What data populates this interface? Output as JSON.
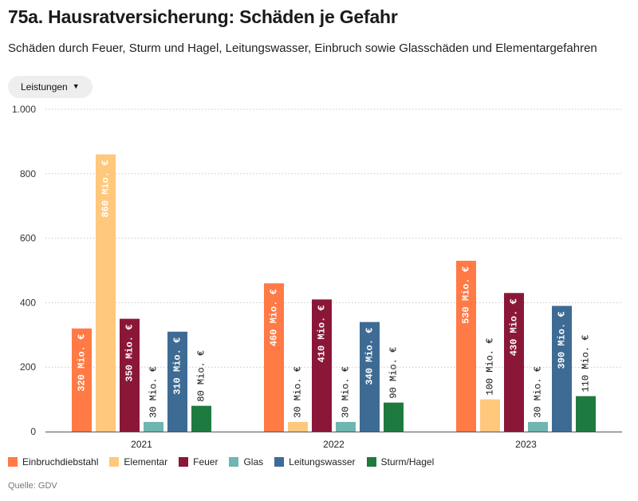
{
  "header": {
    "title": "75a. Hausratversicherung: Schäden je Gefahr",
    "subtitle": "Schäden durch Feuer, Sturm und Hagel, Leitungswasser, Einbruch sowie Glasschäden und Elementargefahren"
  },
  "dropdown": {
    "label": "Leistungen",
    "icon": "chevron-down-icon"
  },
  "source": "Quelle: GDV",
  "chart_data": {
    "type": "bar",
    "categories": [
      "2021",
      "2022",
      "2023"
    ],
    "series": [
      {
        "name": "Einbruchdiebstahl",
        "color": "#ff7a45",
        "values": [
          320,
          460,
          530
        ],
        "labels": [
          "320 Mio. €",
          "460 Mio. €",
          "530 Mio. €"
        ]
      },
      {
        "name": "Elementar",
        "color": "#ffc87c",
        "values": [
          860,
          30,
          100
        ],
        "labels": [
          "860 Mio. €",
          "30 Mio. €",
          "100 Mio. €"
        ]
      },
      {
        "name": "Feuer",
        "color": "#8b1738",
        "values": [
          350,
          410,
          430
        ],
        "labels": [
          "350 Mio. €",
          "410 Mio. €",
          "430 Mio. €"
        ]
      },
      {
        "name": "Glas",
        "color": "#6fb5b0",
        "values": [
          30,
          30,
          30
        ],
        "labels": [
          "30 Mio. €",
          "30 Mio. €",
          "30 Mio. €"
        ]
      },
      {
        "name": "Leitungswasser",
        "color": "#3e6b94",
        "values": [
          310,
          340,
          390
        ],
        "labels": [
          "310 Mio. €",
          "340 Mio. €",
          "390 Mio. €"
        ]
      },
      {
        "name": "Sturm/Hagel",
        "color": "#1f7a40",
        "values": [
          80,
          90,
          110
        ],
        "labels": [
          "80 Mio. €",
          "90 Mio. €",
          "110 Mio. €"
        ]
      }
    ],
    "ylim": [
      0,
      1000
    ],
    "yticks": [
      0,
      200,
      400,
      600,
      800,
      1000
    ],
    "ytick_labels": [
      "0",
      "200",
      "400",
      "600",
      "800",
      "1.000"
    ],
    "grid": true,
    "legend": "bottom-left"
  }
}
